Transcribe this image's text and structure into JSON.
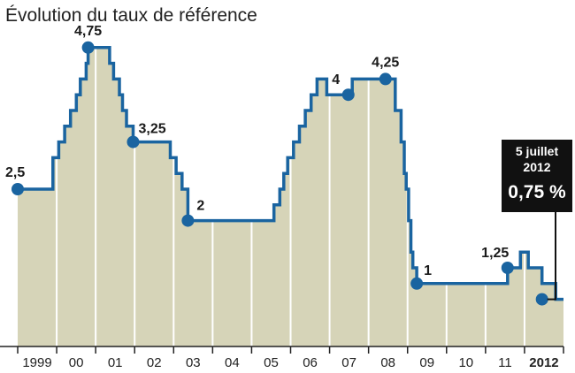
{
  "chart_data": {
    "type": "area",
    "title": "Évolution du taux de référence",
    "xlabel": "",
    "ylabel": "",
    "ylim": [
      0,
      5
    ],
    "grid": false,
    "categories": [
      "1999",
      "00",
      "01",
      "02",
      "03",
      "04",
      "05",
      "06",
      "07",
      "08",
      "09",
      "10",
      "11",
      "2012"
    ],
    "bold_categories": [
      "2012"
    ],
    "series": [
      {
        "x": [
          1999.0,
          1999.75,
          1999.9,
          2000.05,
          2000.2,
          2000.35,
          2000.5,
          2000.6,
          2000.75,
          2000.8,
          2000.93,
          2001.35,
          2001.45,
          2001.6,
          2001.68,
          2001.78,
          2001.95,
          2002.05,
          2002.9,
          2003.05,
          2003.2,
          2003.35,
          2005.4,
          2005.55,
          2005.7,
          2005.8,
          2005.9,
          2006.05,
          2006.2,
          2006.35,
          2006.5,
          2006.65,
          2006.75,
          2006.9,
          2007.45,
          2007.55,
          2008.4,
          2008.65,
          2008.8,
          2008.88,
          2008.93,
          2008.99,
          2009.05,
          2009.1,
          2009.2,
          2011.3,
          2011.52,
          2011.85,
          2011.95,
          2012.05,
          2012.4,
          2012.55,
          2012.75,
          2012.95
        ],
        "values": [
          2.5,
          2.5,
          3.0,
          3.25,
          3.5,
          3.75,
          4.0,
          4.25,
          4.5,
          4.75,
          4.75,
          4.5,
          4.25,
          4.0,
          3.75,
          3.5,
          3.25,
          3.25,
          3.0,
          2.75,
          2.5,
          2.0,
          2.0,
          2.25,
          2.5,
          2.75,
          3.0,
          3.25,
          3.5,
          3.75,
          4.0,
          4.25,
          4.25,
          4.0,
          4.0,
          4.25,
          4.25,
          3.75,
          3.25,
          2.75,
          2.5,
          2.0,
          1.5,
          1.25,
          1.0,
          1.0,
          1.25,
          1.5,
          1.5,
          1.25,
          1.0,
          1.0,
          0.75,
          0.75
        ]
      }
    ],
    "data_labels": [
      {
        "x": 1999.0,
        "y": 2.5,
        "text": "2,5"
      },
      {
        "x": 2000.8,
        "y": 4.75,
        "text": "4,75"
      },
      {
        "x": 2001.95,
        "y": 3.25,
        "text": "3,25"
      },
      {
        "x": 2003.35,
        "y": 2.0,
        "text": "2"
      },
      {
        "x": 2007.45,
        "y": 4.0,
        "text": "4"
      },
      {
        "x": 2008.4,
        "y": 4.25,
        "text": "4,25"
      },
      {
        "x": 2009.2,
        "y": 1.0,
        "text": "1"
      },
      {
        "x": 2011.52,
        "y": 1.25,
        "text": "1,25"
      },
      {
        "x": 2012.4,
        "y": 0.75,
        "text": ""
      }
    ],
    "annotation": {
      "date_line1": "5 juillet",
      "date_line2": "2012",
      "value": "0,75 %"
    },
    "colors": {
      "line": "#1a64a0",
      "fill": "#d6d4b8",
      "divider": "#ffffff",
      "callout_bg": "#111111",
      "marker": "#1a64a0"
    }
  }
}
